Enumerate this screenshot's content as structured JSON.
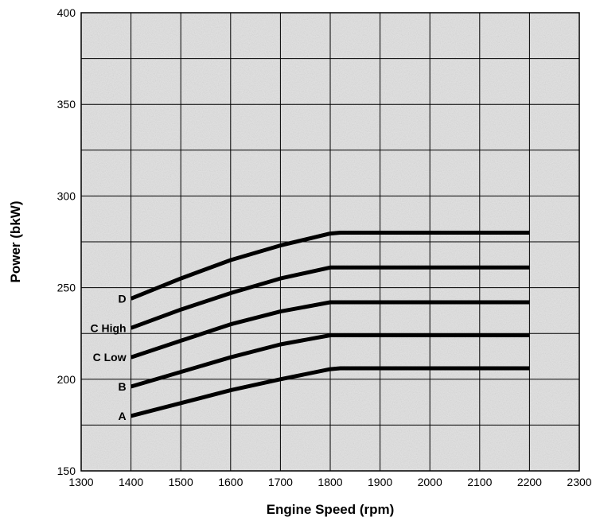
{
  "chart_data": {
    "type": "line",
    "title": "",
    "xlabel": "Engine Speed (rpm)",
    "ylabel": "Power (bkW)",
    "xlim": [
      1300,
      2300
    ],
    "ylim": [
      150,
      400
    ],
    "x_ticks": [
      1300,
      1400,
      1500,
      1600,
      1700,
      1800,
      1900,
      2000,
      2100,
      2200,
      2300
    ],
    "y_ticks": [
      150,
      200,
      250,
      300,
      350,
      400
    ],
    "grid": true,
    "legend": "none",
    "colors": {
      "background": "#e4e4e4",
      "grid": "#000000",
      "line": "#000000"
    },
    "x": [
      1400,
      1500,
      1600,
      1700,
      1800,
      1820,
      1900,
      2000,
      2100,
      2200
    ],
    "series": [
      {
        "name": "D",
        "values": [
          244,
          255,
          265,
          273,
          279.5,
          280,
          280,
          280,
          280,
          280
        ]
      },
      {
        "name": "C High",
        "values": [
          228,
          238,
          247,
          255,
          261,
          261,
          261,
          261,
          261,
          261
        ]
      },
      {
        "name": "C Low",
        "values": [
          212,
          221,
          230,
          237,
          242,
          242,
          242,
          242,
          242,
          242
        ]
      },
      {
        "name": "B",
        "values": [
          196,
          204,
          212,
          219,
          224,
          224,
          224,
          224,
          224,
          224
        ]
      },
      {
        "name": "A",
        "values": [
          180,
          187,
          194,
          200,
          205.5,
          206,
          206,
          206,
          206,
          206
        ]
      }
    ]
  }
}
